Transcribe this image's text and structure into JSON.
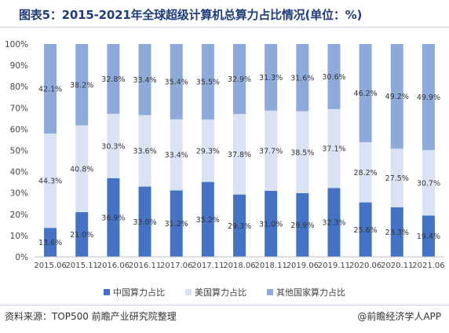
{
  "title": "图表5：2015-2021年全球超级计算机总算力占比情况(单位：%)",
  "source": "资料来源：TOP500 前瞻产业研究院整理",
  "brand": "@前瞻经济学人APP",
  "colors": {
    "china": "#4472c4",
    "us": "#dae3f3",
    "others": "#8eaadb",
    "title": "#1f3d7a"
  },
  "chart_data": {
    "type": "bar",
    "stacked": true,
    "categories": [
      "2015.06",
      "2015.11",
      "2016.06",
      "2016.11",
      "2017.06",
      "2017.11",
      "2018.06",
      "2018.11",
      "2019.06",
      "2019.11",
      "2020.06",
      "2020.11",
      "2021.06"
    ],
    "series": [
      {
        "name": "中国算力占比",
        "color": "#4472c4",
        "values": [
          13.6,
          21.0,
          36.9,
          33.0,
          31.2,
          35.2,
          29.3,
          31.0,
          29.9,
          32.3,
          25.6,
          23.3,
          19.4
        ],
        "labels": [
          "13.6%",
          "21.0%",
          "36.9%",
          "33.0%",
          "31.2%",
          "35.2%",
          "29.3%",
          "31.0%",
          "29.9%",
          "32.3%",
          "25.6%",
          "23.3%",
          "19.4%"
        ]
      },
      {
        "name": "美国算力占比",
        "color": "#dae3f3",
        "values": [
          44.3,
          40.8,
          30.3,
          33.6,
          33.4,
          29.3,
          37.8,
          37.7,
          38.5,
          37.1,
          28.2,
          27.5,
          30.7
        ],
        "labels": [
          "44.3%",
          "40.8%",
          "30.3%",
          "33.6%",
          "33.4%",
          "29.3%",
          "37.8%",
          "37.7%",
          "38.5%",
          "37.1%",
          "28.2%",
          "27.5%",
          "30.7%"
        ]
      },
      {
        "name": "其他国家算力占比",
        "color": "#8eaadb",
        "values": [
          42.1,
          38.2,
          32.8,
          33.4,
          35.4,
          35.5,
          32.9,
          31.3,
          31.6,
          30.6,
          46.2,
          49.2,
          49.9
        ],
        "labels": [
          "42.1%",
          "38.2%",
          "32.8%",
          "33.4%",
          "35.4%",
          "35.5%",
          "32.9%",
          "31.3%",
          "31.6%",
          "30.6%",
          "46.2%",
          "49.2%",
          "49.9%"
        ]
      }
    ],
    "ylim": [
      0,
      100
    ],
    "yticks": [
      "0%",
      "10%",
      "20%",
      "30%",
      "40%",
      "50%",
      "60%",
      "70%",
      "80%",
      "90%",
      "100%"
    ],
    "grid": false,
    "legend": "bottom"
  }
}
